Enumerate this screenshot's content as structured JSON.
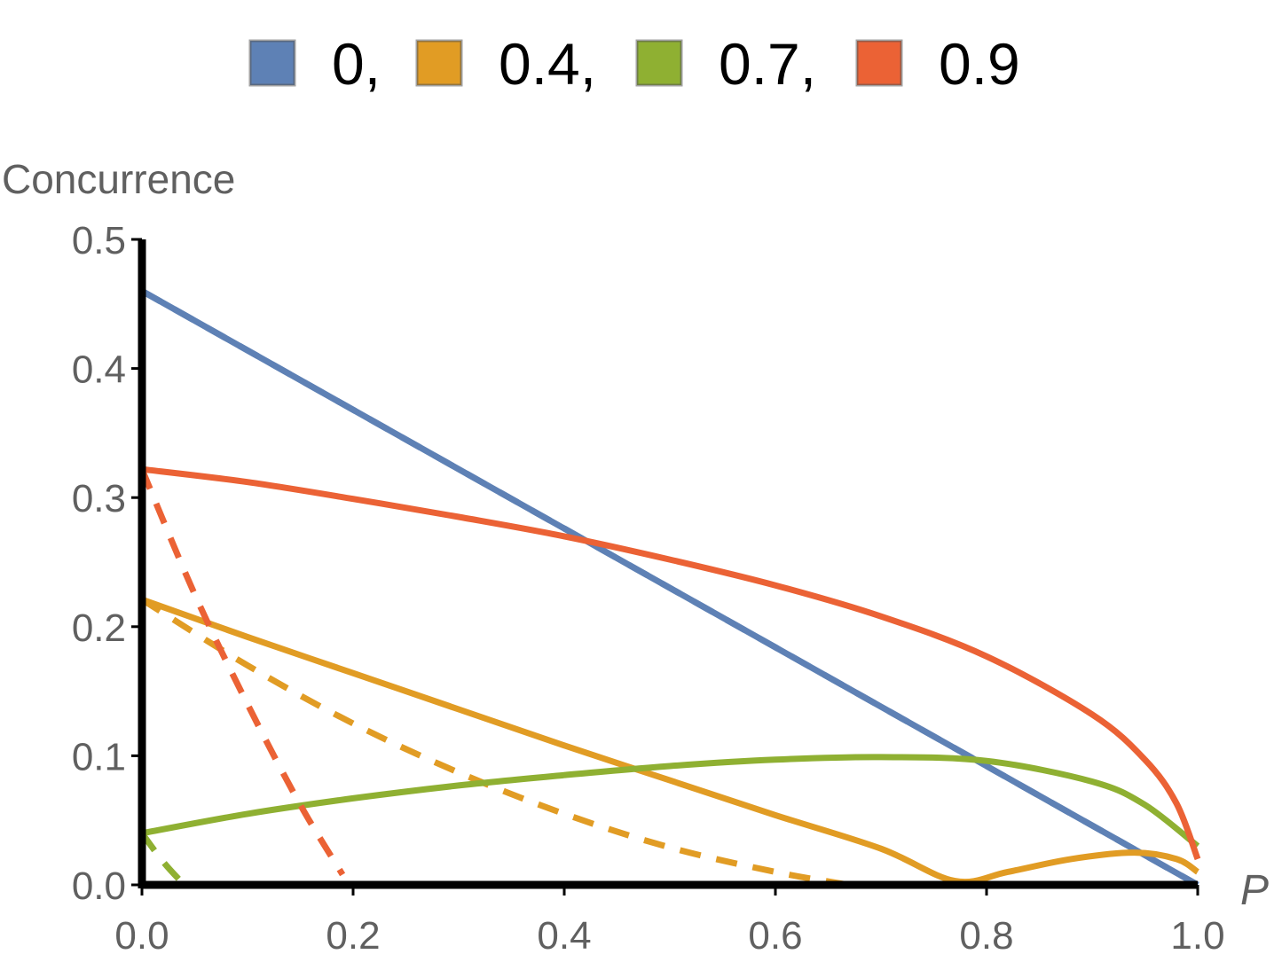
{
  "chart_data": {
    "type": "line",
    "title": "",
    "xlabel": "P",
    "ylabel": "Concurrence",
    "xlim": [
      0,
      1
    ],
    "ylim": [
      0,
      0.5
    ],
    "x_ticks": [
      "0.0",
      "0.2",
      "0.4",
      "0.6",
      "0.8",
      "1.0"
    ],
    "y_ticks": [
      "0.0",
      "0.1",
      "0.2",
      "0.3",
      "0.4",
      "0.5"
    ],
    "legend": [
      {
        "label": "0,",
        "color": "#5E81B5"
      },
      {
        "label": "0.4,",
        "color": "#E19C24"
      },
      {
        "label": "0.7,",
        "color": "#8FB032"
      },
      {
        "label": "0.9",
        "color": "#EB6235"
      }
    ],
    "series": [
      {
        "name": "0 solid",
        "color": "#5E81B5",
        "dashed": false,
        "x": [
          0,
          0.2,
          0.4,
          0.6,
          0.8,
          1.0
        ],
        "y": [
          0.46,
          0.368,
          0.276,
          0.184,
          0.092,
          0.0
        ]
      },
      {
        "name": "0 dashed",
        "color": "#5E81B5",
        "dashed": true,
        "x": [
          0,
          0.2,
          0.4,
          0.6,
          0.8,
          1.0
        ],
        "y": [
          0.46,
          0.368,
          0.276,
          0.184,
          0.092,
          0.0
        ]
      },
      {
        "name": "0.4 solid",
        "color": "#E19C24",
        "dashed": false,
        "x": [
          0,
          0.1,
          0.2,
          0.3,
          0.4,
          0.5,
          0.6,
          0.7,
          0.77,
          0.82,
          0.88,
          0.94,
          0.98,
          1.0
        ],
        "y": [
          0.221,
          0.192,
          0.164,
          0.136,
          0.108,
          0.081,
          0.054,
          0.028,
          0.003,
          0.01,
          0.02,
          0.025,
          0.02,
          0.01
        ]
      },
      {
        "name": "0.4 dashed",
        "color": "#E19C24",
        "dashed": true,
        "x": [
          0,
          0.1,
          0.2,
          0.3,
          0.4,
          0.5,
          0.6,
          0.67
        ],
        "y": [
          0.221,
          0.17,
          0.125,
          0.087,
          0.055,
          0.029,
          0.01,
          0.0
        ]
      },
      {
        "name": "0.7 solid",
        "color": "#8FB032",
        "dashed": false,
        "x": [
          0,
          0.1,
          0.2,
          0.3,
          0.4,
          0.5,
          0.6,
          0.7,
          0.8,
          0.9,
          0.95,
          1.0
        ],
        "y": [
          0.04,
          0.055,
          0.067,
          0.077,
          0.085,
          0.092,
          0.097,
          0.099,
          0.096,
          0.08,
          0.062,
          0.03
        ]
      },
      {
        "name": "0.7 dashed",
        "color": "#8FB032",
        "dashed": true,
        "x": [
          0,
          0.02,
          0.04
        ],
        "y": [
          0.04,
          0.018,
          0.0
        ]
      },
      {
        "name": "0.9 solid",
        "color": "#EB6235",
        "dashed": false,
        "x": [
          0,
          0.1,
          0.2,
          0.3,
          0.4,
          0.5,
          0.6,
          0.7,
          0.8,
          0.9,
          0.95,
          0.98,
          1.0
        ],
        "y": [
          0.322,
          0.312,
          0.299,
          0.285,
          0.27,
          0.252,
          0.232,
          0.208,
          0.177,
          0.132,
          0.097,
          0.063,
          0.02
        ]
      },
      {
        "name": "0.9 dashed",
        "color": "#EB6235",
        "dashed": true,
        "x": [
          0,
          0.05,
          0.1,
          0.15,
          0.19
        ],
        "y": [
          0.322,
          0.225,
          0.14,
          0.062,
          0.008
        ]
      }
    ]
  }
}
